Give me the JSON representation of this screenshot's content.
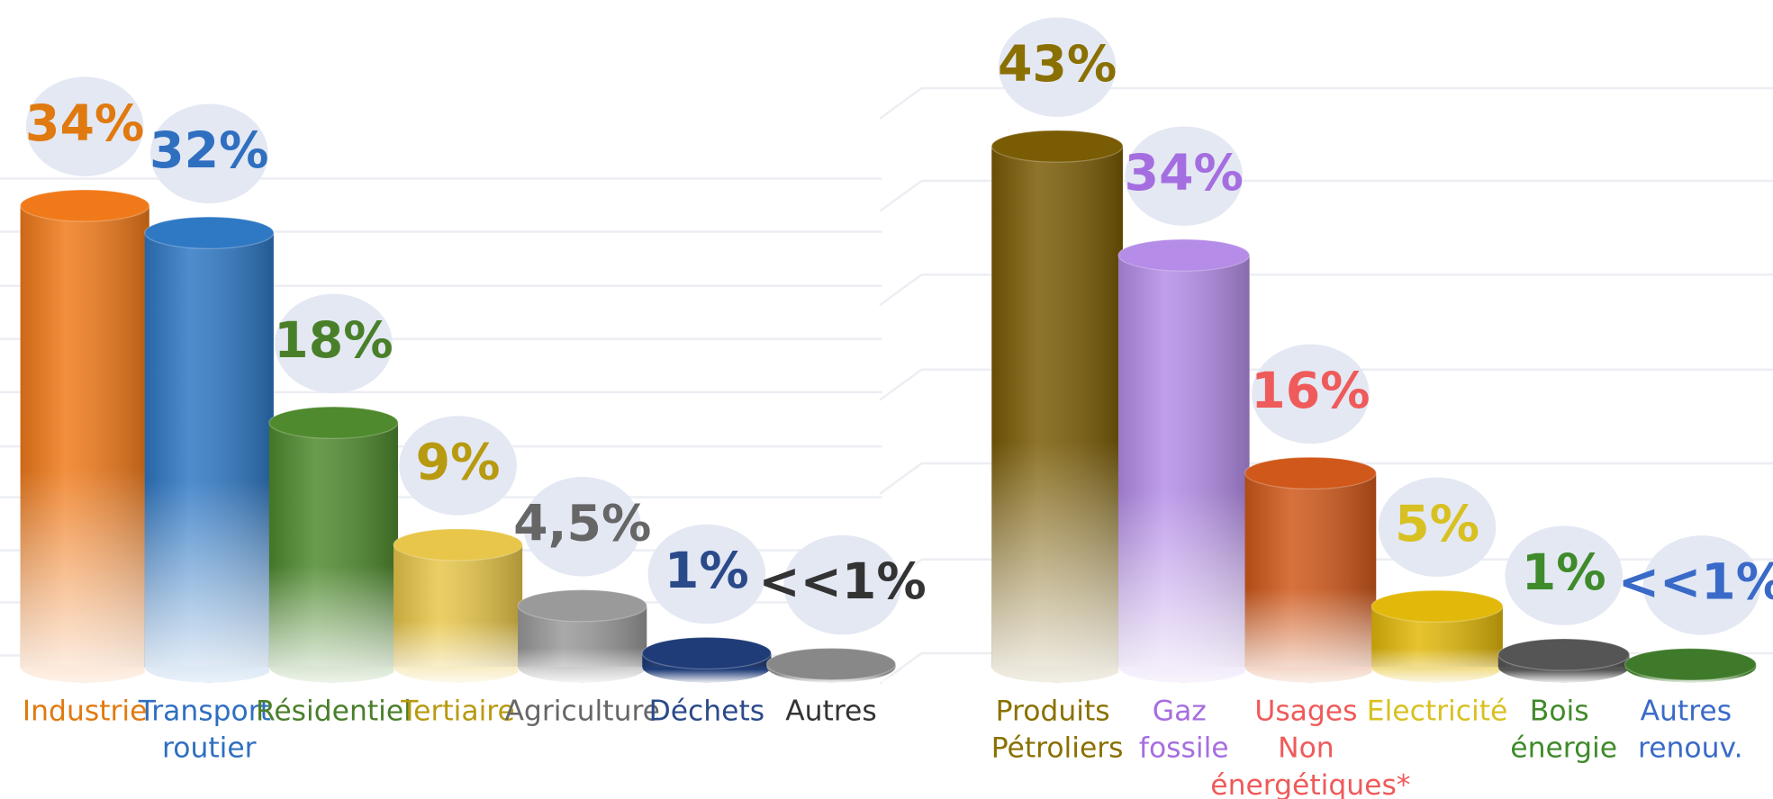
{
  "chart_data": [
    {
      "type": "bar",
      "categories": [
        "Industrie",
        "Transport routier",
        "Résidentiel",
        "Tertiaire",
        "Agriculture",
        "Déchets",
        "Autres"
      ],
      "values": [
        34,
        32,
        18,
        9,
        4.5,
        1,
        0.2
      ],
      "value_labels": [
        "34%",
        "32%",
        "18%",
        "9%",
        "4,5%",
        "1%",
        "<<1%"
      ],
      "colors": [
        "#f07a1a",
        "#2f78c4",
        "#4f8a2e",
        "#e8c64a",
        "#9a9a9a",
        "#1f3c78",
        "#888888"
      ],
      "label_colors": [
        "#e07a10",
        "#2f6fc0",
        "#4a7f2a",
        "#b89a10",
        "#666666",
        "#2a4a8a",
        "#333333"
      ],
      "ylim": [
        0,
        40
      ]
    },
    {
      "type": "bar",
      "categories": [
        "Produits Pétroliers",
        "Gaz fossile",
        "Usages Non énergétiques*",
        "Electricité",
        "Bois énergie",
        "Autres renouv."
      ],
      "values": [
        43,
        34,
        16,
        5,
        1,
        0.2
      ],
      "value_labels": [
        "43%",
        "34%",
        "16%",
        "5%",
        "1%",
        "<<1%"
      ],
      "colors": [
        "#7a5c05",
        "#b58de8",
        "#d0581a",
        "#e2b80a",
        "#555555",
        "#3f7a2a"
      ],
      "label_colors": [
        "#8a7000",
        "#a56ee0",
        "#ef5a5a",
        "#d8c020",
        "#3f8a2a",
        "#3a6ac8"
      ],
      "ylim": [
        0,
        45
      ]
    }
  ]
}
